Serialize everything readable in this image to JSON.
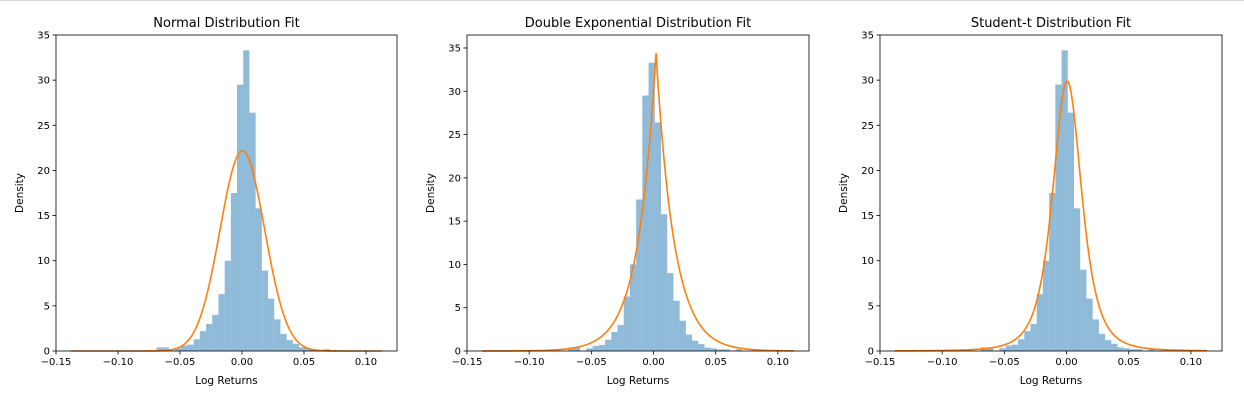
{
  "colors": {
    "histogram": "#1f77b4",
    "fit": "#ff7f0e"
  },
  "chart_data": [
    {
      "type": "bar",
      "title": "Normal Distribution Fit",
      "xlabel": "Log Returns",
      "ylabel": "Density",
      "xlim": [
        -0.15,
        0.125
      ],
      "ylim": [
        0,
        35
      ],
      "xticks": [
        -0.15,
        -0.1,
        -0.05,
        0.0,
        0.05,
        0.1
      ],
      "xtick_labels": [
        "−0.15",
        "−0.10",
        "−0.05",
        "0.00",
        "0.05",
        "0.10"
      ],
      "yticks": [
        0,
        5,
        10,
        15,
        20,
        25,
        30,
        35
      ],
      "ytick_labels": [
        "0",
        "5",
        "10",
        "15",
        "20",
        "25",
        "30",
        "35"
      ],
      "histogram": {
        "bins": [
          [
            -0.069,
            -0.064,
            0.4
          ],
          [
            -0.064,
            -0.059,
            0.4
          ],
          [
            -0.054,
            -0.049,
            0.3
          ],
          [
            -0.049,
            -0.044,
            0.6
          ],
          [
            -0.044,
            -0.039,
            0.7
          ],
          [
            -0.039,
            -0.034,
            1.3
          ],
          [
            -0.034,
            -0.029,
            2.2
          ],
          [
            -0.029,
            -0.024,
            3.0
          ],
          [
            -0.024,
            -0.019,
            4.0
          ],
          [
            -0.019,
            -0.014,
            6.3
          ],
          [
            -0.014,
            -0.009,
            10.0
          ],
          [
            -0.009,
            -0.004,
            17.5
          ],
          [
            -0.004,
            0.001,
            29.5
          ],
          [
            0.001,
            0.006,
            33.3
          ],
          [
            0.006,
            0.011,
            26.4
          ],
          [
            0.011,
            0.016,
            15.8
          ],
          [
            0.016,
            0.021,
            8.9
          ],
          [
            0.021,
            0.026,
            5.8
          ],
          [
            0.026,
            0.031,
            3.5
          ],
          [
            0.031,
            0.036,
            1.9
          ],
          [
            0.036,
            0.041,
            1.2
          ],
          [
            0.041,
            0.046,
            0.8
          ],
          [
            0.046,
            0.051,
            0.4
          ],
          [
            0.051,
            0.056,
            0.3
          ],
          [
            0.056,
            0.061,
            0.2
          ],
          [
            0.066,
            0.071,
            0.2
          ]
        ]
      },
      "fit_curve": {
        "type": "normal",
        "mu": 0.0003,
        "sigma": 0.018
      }
    },
    {
      "type": "bar",
      "title": "Double Exponential Distribution Fit",
      "xlabel": "Log Returns",
      "ylabel": "Density",
      "xlim": [
        -0.15,
        0.125
      ],
      "ylim": [
        0,
        36.5
      ],
      "xticks": [
        -0.15,
        -0.1,
        -0.05,
        0.0,
        0.05,
        0.1
      ],
      "xtick_labels": [
        "−0.15",
        "−0.10",
        "−0.05",
        "0.00",
        "0.05",
        "0.10"
      ],
      "yticks": [
        0,
        5,
        10,
        15,
        20,
        25,
        30,
        35
      ],
      "ytick_labels": [
        "0",
        "5",
        "10",
        "15",
        "20",
        "25",
        "30",
        "35"
      ],
      "histogram": {
        "bins": [
          [
            -0.069,
            -0.064,
            0.4
          ],
          [
            -0.064,
            -0.059,
            0.4
          ],
          [
            -0.054,
            -0.049,
            0.3
          ],
          [
            -0.049,
            -0.044,
            0.6
          ],
          [
            -0.044,
            -0.039,
            0.7
          ],
          [
            -0.039,
            -0.034,
            1.3
          ],
          [
            -0.034,
            -0.029,
            2.2
          ],
          [
            -0.029,
            -0.024,
            3.0
          ],
          [
            -0.024,
            -0.019,
            6.3
          ],
          [
            -0.019,
            -0.014,
            10.0
          ],
          [
            -0.014,
            -0.009,
            17.5
          ],
          [
            -0.009,
            -0.004,
            29.5
          ],
          [
            -0.004,
            0.001,
            33.3
          ],
          [
            0.001,
            0.006,
            26.4
          ],
          [
            0.006,
            0.011,
            15.8
          ],
          [
            0.011,
            0.016,
            9.0
          ],
          [
            0.016,
            0.021,
            5.8
          ],
          [
            0.021,
            0.026,
            3.5
          ],
          [
            0.026,
            0.031,
            1.9
          ],
          [
            0.031,
            0.036,
            1.2
          ],
          [
            0.036,
            0.041,
            0.8
          ],
          [
            0.041,
            0.046,
            0.4
          ],
          [
            0.046,
            0.051,
            0.3
          ],
          [
            0.051,
            0.056,
            0.2
          ],
          [
            0.056,
            0.061,
            0.2
          ],
          [
            0.066,
            0.071,
            0.2
          ]
        ]
      },
      "fit_curve": {
        "type": "laplace",
        "mu": 0.002,
        "b": 0.0145
      }
    },
    {
      "type": "bar",
      "title": "Student-t Distribution Fit",
      "xlabel": "Log Returns",
      "ylabel": "Density",
      "xlim": [
        -0.15,
        0.125
      ],
      "ylim": [
        0,
        35
      ],
      "xticks": [
        -0.15,
        -0.1,
        -0.05,
        0.0,
        0.05,
        0.1
      ],
      "xtick_labels": [
        "−0.15",
        "−0.10",
        "−0.05",
        "0.00",
        "0.05",
        "0.10"
      ],
      "yticks": [
        0,
        5,
        10,
        15,
        20,
        25,
        30,
        35
      ],
      "ytick_labels": [
        "0",
        "5",
        "10",
        "15",
        "20",
        "25",
        "30",
        "35"
      ],
      "histogram": {
        "bins": [
          [
            -0.069,
            -0.064,
            0.4
          ],
          [
            -0.064,
            -0.059,
            0.4
          ],
          [
            -0.054,
            -0.049,
            0.3
          ],
          [
            -0.049,
            -0.044,
            0.6
          ],
          [
            -0.044,
            -0.039,
            0.7
          ],
          [
            -0.039,
            -0.034,
            1.3
          ],
          [
            -0.034,
            -0.029,
            2.2
          ],
          [
            -0.029,
            -0.024,
            3.0
          ],
          [
            -0.024,
            -0.019,
            6.3
          ],
          [
            -0.019,
            -0.014,
            10.0
          ],
          [
            -0.014,
            -0.009,
            17.5
          ],
          [
            -0.009,
            -0.004,
            29.5
          ],
          [
            -0.004,
            0.001,
            33.3
          ],
          [
            0.001,
            0.006,
            26.4
          ],
          [
            0.006,
            0.011,
            15.8
          ],
          [
            0.011,
            0.016,
            9.0
          ],
          [
            0.016,
            0.021,
            5.8
          ],
          [
            0.021,
            0.026,
            3.5
          ],
          [
            0.026,
            0.031,
            1.9
          ],
          [
            0.031,
            0.036,
            1.2
          ],
          [
            0.036,
            0.041,
            0.8
          ],
          [
            0.041,
            0.046,
            0.4
          ],
          [
            0.046,
            0.051,
            0.3
          ],
          [
            0.051,
            0.056,
            0.2
          ],
          [
            0.056,
            0.061,
            0.2
          ],
          [
            0.066,
            0.071,
            0.2
          ]
        ]
      },
      "fit_curve": {
        "type": "student_t",
        "mu": 0.0005,
        "scale": 0.0123,
        "df": 3
      }
    }
  ]
}
